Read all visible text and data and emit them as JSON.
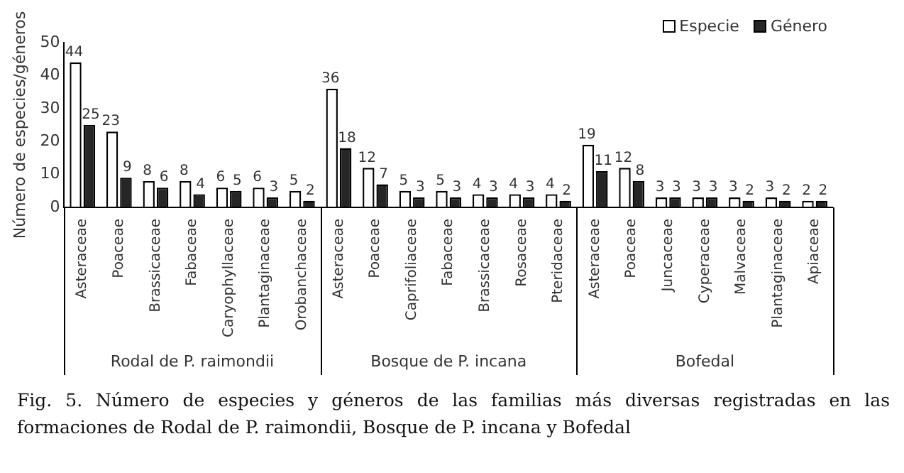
{
  "chart_data": {
    "type": "bar",
    "ylabel": "Número de especies/géneros",
    "categories": [
      "Asteraceae",
      "Poaceae",
      "Brassicaceae",
      "Fabaceae",
      "Caryophyllaceae",
      "Plantaginaceae",
      "Orobanchaceae",
      "Asteraceae",
      "Poaceae",
      "Caprifoliaceae",
      "Fabaceae",
      "Brassicaceae",
      "Rosaceae",
      "Pteridaceae",
      "Asteraceae",
      "Poaceae",
      "Juncaceae",
      "Cyperaceae",
      "Malvaceae",
      "Plantaginaceae",
      "Apiaceae"
    ],
    "series": [
      {
        "name": "Especie",
        "color": "#ffffff",
        "values": [
          44,
          23,
          8,
          8,
          6,
          6,
          5,
          36,
          12,
          5,
          5,
          4,
          4,
          4,
          19,
          12,
          3,
          3,
          3,
          3,
          2
        ]
      },
      {
        "name": "Género",
        "color": "#262626",
        "values": [
          25,
          9,
          6,
          4,
          5,
          3,
          2,
          18,
          7,
          3,
          3,
          3,
          3,
          2,
          11,
          8,
          3,
          3,
          2,
          2,
          2
        ]
      }
    ],
    "ylim": [
      0,
      50
    ],
    "yticks": [
      0,
      10,
      20,
      30,
      40,
      50
    ],
    "grid": false,
    "legend": "top right",
    "data_labels": true,
    "annotations": [
      "Rodal de P. raimondii",
      "Bosque de P. incana",
      "Bofedal",
      "Fig. 5. Número de especies y géneros de las familias más diversas registradas en las formaciones de Rodal de P. raimondii, Bosque de P. incana y Bofedal"
    ]
  }
}
